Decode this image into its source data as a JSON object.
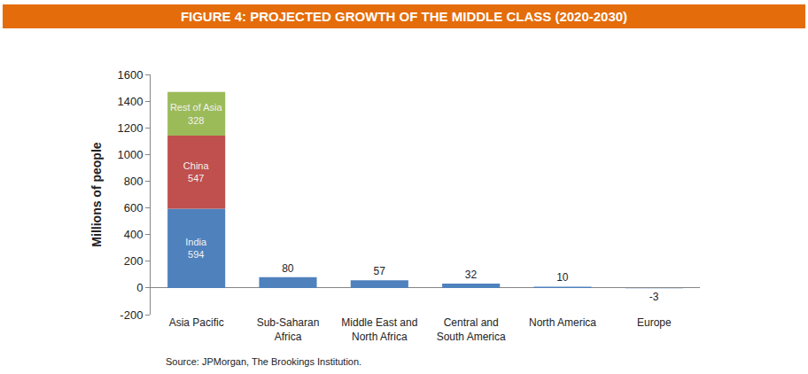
{
  "chart_data": {
    "type": "bar",
    "title": "FIGURE 4: PROJECTED GROWTH OF THE MIDDLE CLASS (2020-2030)",
    "y_label": "Millions of people",
    "annotations": [
      "Source: JPMorgan, The Brookings Institution."
    ],
    "categories": [
      "Asia Pacific",
      "Sub-Saharan Africa",
      "Middle East and North Africa",
      "Central and South America",
      "North America",
      "Europe"
    ],
    "series": [
      {
        "name": "India",
        "color": "#4f81bd",
        "values": [
          594,
          null,
          null,
          null,
          null,
          null
        ]
      },
      {
        "name": "China",
        "color": "#c0504d",
        "values": [
          547,
          null,
          null,
          null,
          null,
          null
        ]
      },
      {
        "name": "Rest of Asia",
        "color": "#9bbb59",
        "values": [
          328,
          null,
          null,
          null,
          null,
          null
        ]
      },
      {
        "color": "#4f81bd",
        "values": [
          null,
          80,
          57,
          32,
          10,
          -3
        ]
      }
    ],
    "stacked": true,
    "data_labels": true,
    "grid": false,
    "ylim": [
      -200,
      1600
    ],
    "yticks": [
      -200,
      0,
      200,
      400,
      600,
      800,
      1000,
      1200,
      1400,
      1600
    ]
  }
}
